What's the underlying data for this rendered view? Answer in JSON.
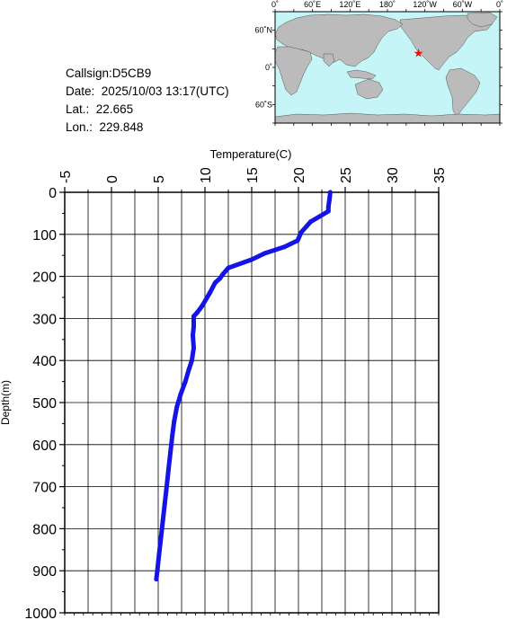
{
  "info": {
    "callsign_label": "Callsign:",
    "callsign": "D5CB9",
    "date_label": "Date:",
    "date": "2025/10/03 13:17(UTC)",
    "lat_label": "Lat.:",
    "lat": "22.665",
    "lon_label": "Lon.:",
    "lon": "229.848"
  },
  "map": {
    "top_labels": [
      "0˚",
      "60˚E",
      "120˚E",
      "180˚",
      "120˚W",
      "60˚W",
      "0˚"
    ],
    "left_labels": [
      "60˚N",
      "0˚",
      "60˚S"
    ],
    "ocean_color": "#c6f5f7",
    "land_color": "#bbbbbb",
    "marker_color": "#ff0000",
    "marker": {
      "lon": 229.848,
      "lat": 22.665
    }
  },
  "chart_data": {
    "type": "line",
    "xlabel": "Temperature(C)",
    "ylabel": "Depth(m)",
    "xlim": [
      -5,
      35
    ],
    "ylim": [
      1000,
      0
    ],
    "x_ticks": [
      "-5",
      "0",
      "5",
      "10",
      "15",
      "20",
      "25",
      "30",
      "35"
    ],
    "y_ticks": [
      "0",
      "100",
      "200",
      "300",
      "400",
      "500",
      "600",
      "700",
      "800",
      "900",
      "1000"
    ],
    "grid": true,
    "line_color": "#1414e6",
    "series": [
      {
        "x": [
          23.4,
          23.3,
          23.2,
          23.2,
          21.3,
          20.9,
          20.3,
          19.9,
          18.5,
          16.4,
          15.0,
          12.5,
          11.9,
          11.6,
          11.1,
          10.5,
          9.7,
          9.2,
          8.8,
          8.8,
          8.7,
          8.8,
          8.6,
          8.3,
          7.9,
          7.4,
          7.0,
          6.7,
          6.5,
          6.3,
          6.1,
          5.9,
          5.7,
          5.5,
          5.3,
          5.1,
          4.9,
          4.8
        ],
        "y": [
          0,
          20,
          35,
          45,
          70,
          80,
          95,
          115,
          130,
          145,
          160,
          180,
          195,
          205,
          215,
          240,
          270,
          285,
          295,
          320,
          340,
          370,
          400,
          420,
          450,
          480,
          510,
          545,
          580,
          620,
          660,
          700,
          740,
          780,
          820,
          860,
          900,
          920
        ]
      }
    ]
  }
}
